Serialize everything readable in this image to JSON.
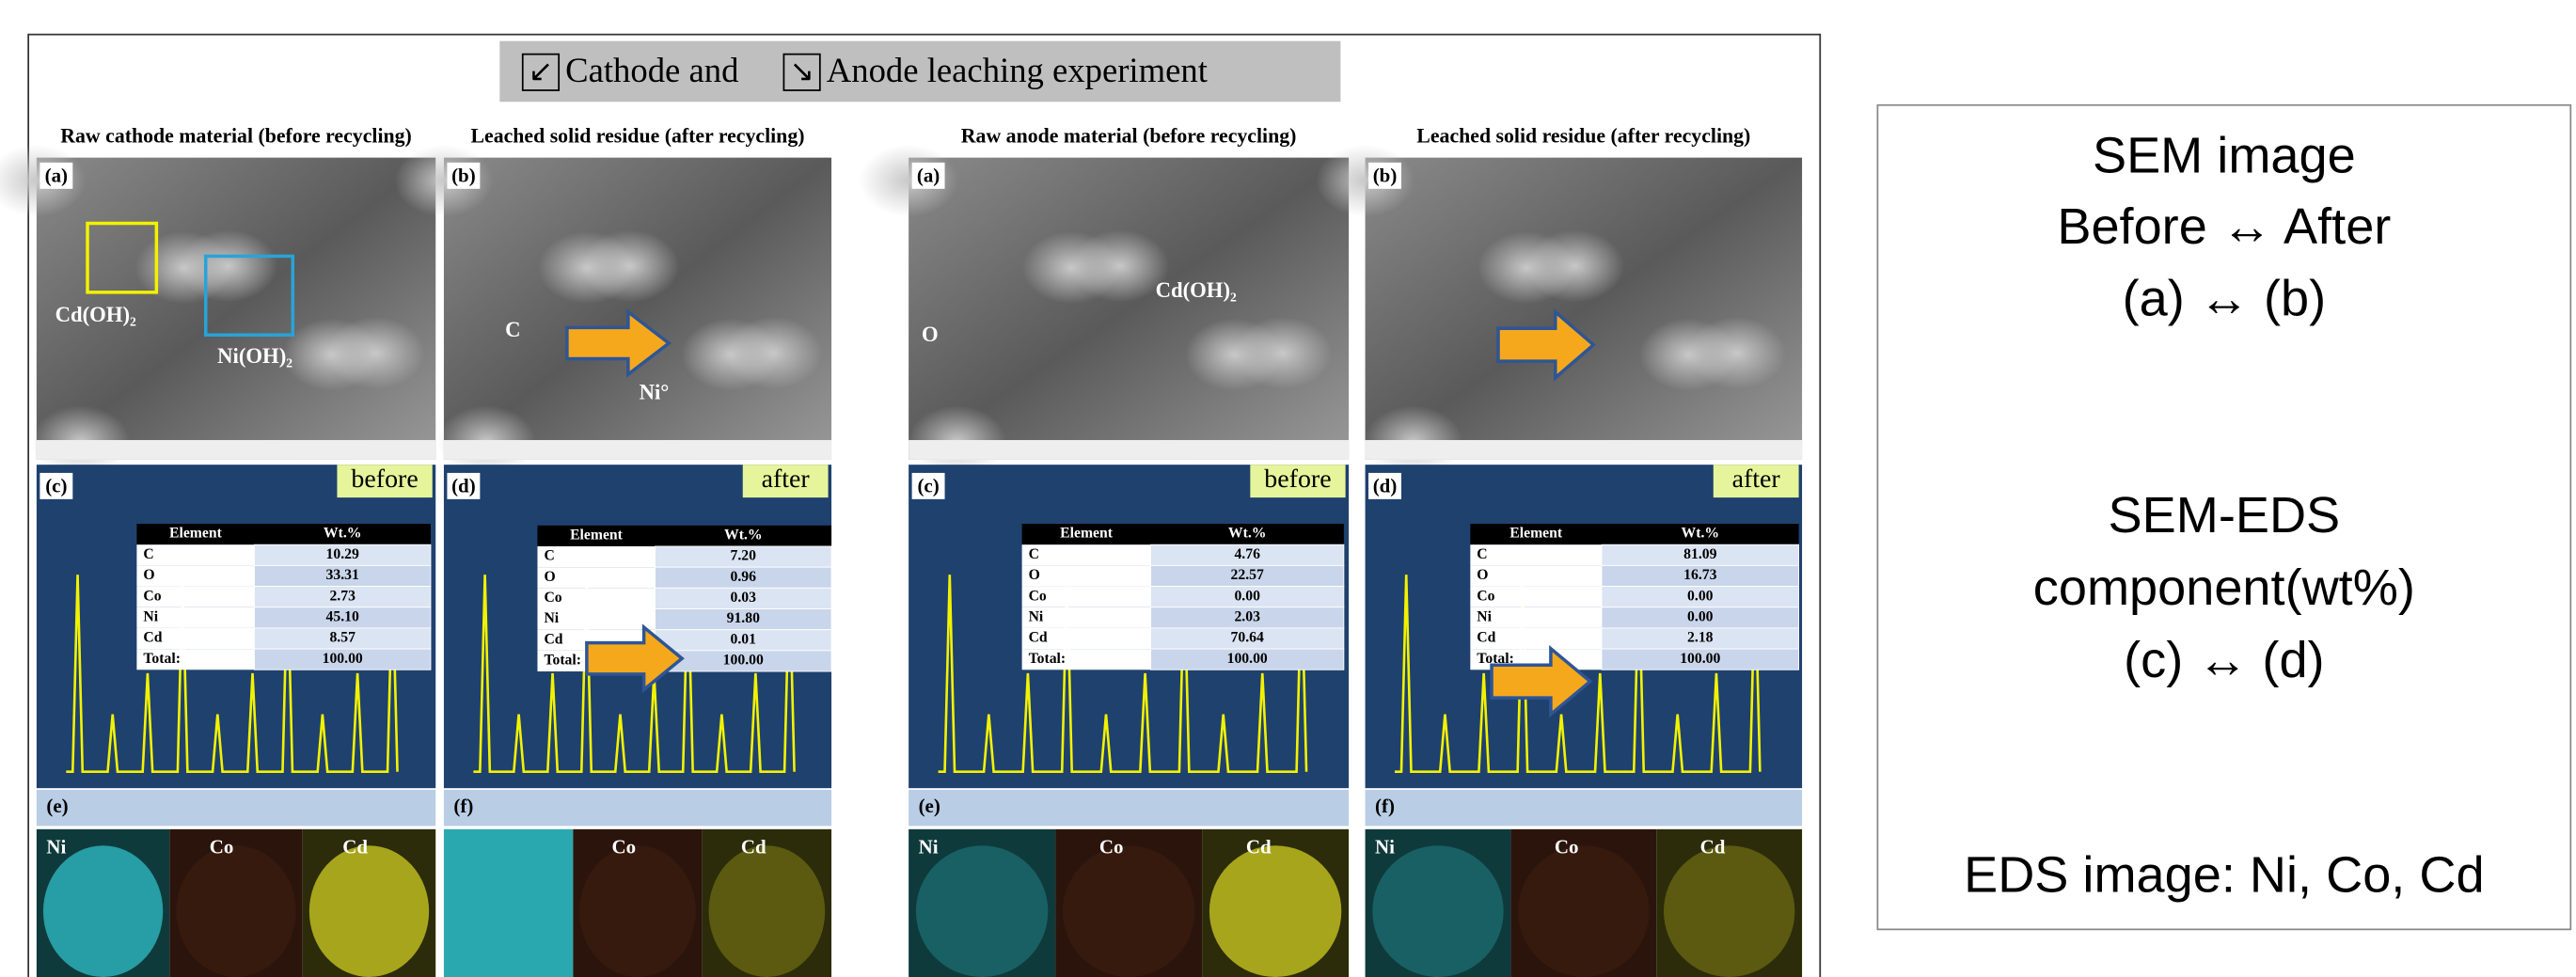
{
  "header": {
    "check_left": "↙",
    "title_part1": "Cathode and",
    "check_right": "↘",
    "title_part2": "Anode leaching experiment"
  },
  "columns": [
    {
      "title": "Raw cathode material (before recycling)",
      "sem_label": "(a)",
      "annotations": [
        "Cd(OH)₂",
        "Ni(OH)₂"
      ],
      "eds_label": "(c)",
      "badge": "before",
      "table": {
        "header": [
          "Element",
          "Wt.%"
        ],
        "rows": [
          [
            "C",
            "10.29"
          ],
          [
            "O",
            "33.31"
          ],
          [
            "Co",
            "2.73"
          ],
          [
            "Ni",
            "45.10"
          ],
          [
            "Cd",
            "8.57"
          ],
          [
            "Total:",
            "100.00"
          ]
        ]
      },
      "map_label": "(e)",
      "maps": [
        "Ni",
        "Co",
        "Cd"
      ]
    },
    {
      "title": "Leached solid residue (after recycling)",
      "sem_label": "(b)",
      "annotations": [
        "C",
        "Ni°"
      ],
      "eds_label": "(d)",
      "badge": "after",
      "table": {
        "header": [
          "Element",
          "Wt.%"
        ],
        "rows": [
          [
            "C",
            "7.20"
          ],
          [
            "O",
            "0.96"
          ],
          [
            "Co",
            "0.03"
          ],
          [
            "Ni",
            "91.80"
          ],
          [
            "Cd",
            "0.01"
          ],
          [
            "Total:",
            "100.00"
          ]
        ]
      },
      "map_label": "(f)",
      "maps": [
        "Co",
        "Cd"
      ]
    },
    {
      "title": "Raw anode material (before recycling)",
      "sem_label": "(a)",
      "annotations": [
        "O",
        "Cd(OH)₂"
      ],
      "eds_label": "(c)",
      "badge": "before",
      "table": {
        "header": [
          "Element",
          "Wt.%"
        ],
        "rows": [
          [
            "C",
            "4.76"
          ],
          [
            "O",
            "22.57"
          ],
          [
            "Co",
            "0.00"
          ],
          [
            "Ni",
            "2.03"
          ],
          [
            "Cd",
            "70.64"
          ],
          [
            "Total:",
            "100.00"
          ]
        ]
      },
      "map_label": "(e)",
      "maps": [
        "Ni",
        "Co",
        "Cd"
      ]
    },
    {
      "title": "Leached solid residue (after recycling)",
      "sem_label": "(b)",
      "annotations": [],
      "eds_label": "(d)",
      "badge": "after",
      "table": {
        "header": [
          "Element",
          "Wt.%"
        ],
        "rows": [
          [
            "C",
            "81.09"
          ],
          [
            "O",
            "16.73"
          ],
          [
            "Co",
            "0.00"
          ],
          [
            "Ni",
            "0.00"
          ],
          [
            "Cd",
            "2.18"
          ],
          [
            "Total:",
            "100.00"
          ]
        ]
      },
      "map_label": "(f)",
      "maps": [
        "Ni",
        "Co",
        "Cd"
      ]
    }
  ],
  "side_box": [
    "SEM image",
    "Before ↔  After",
    "(a) ↔ (b)",
    "SEM-EDS",
    "component(wt%)",
    "(c) ↔ (d)",
    "EDS image: Ni, Co, Cd"
  ]
}
